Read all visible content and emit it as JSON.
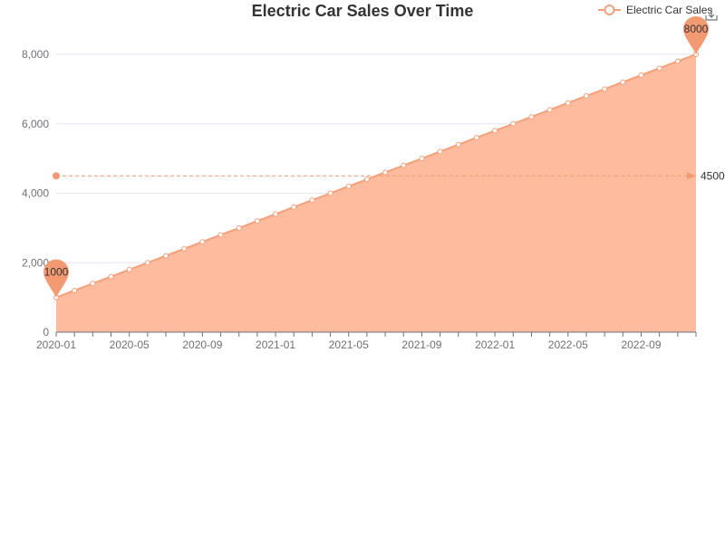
{
  "chart_data": {
    "type": "area",
    "title": "Electric Car Sales Over Time",
    "xlabel": "",
    "ylabel": "",
    "x": [
      "2020-01",
      "2020-02",
      "2020-03",
      "2020-04",
      "2020-05",
      "2020-06",
      "2020-07",
      "2020-08",
      "2020-09",
      "2020-10",
      "2020-11",
      "2020-12",
      "2021-01",
      "2021-02",
      "2021-03",
      "2021-04",
      "2021-05",
      "2021-06",
      "2021-07",
      "2021-08",
      "2021-09",
      "2021-10",
      "2021-11",
      "2021-12",
      "2022-01",
      "2022-02",
      "2022-03",
      "2022-04",
      "2022-05",
      "2022-06",
      "2022-07",
      "2022-08",
      "2022-09",
      "2022-10",
      "2022-11",
      "2022-12"
    ],
    "x_tick_labels": [
      "2020-01",
      "2020-05",
      "2020-09",
      "2021-01",
      "2021-05",
      "2021-09",
      "2022-01",
      "2022-05",
      "2022-09"
    ],
    "y_tick_labels": [
      "0",
      "2,000",
      "4,000",
      "6,000",
      "8,000"
    ],
    "ylim": [
      0,
      8000
    ],
    "series": [
      {
        "name": "Electric Car Sales",
        "values": [
          1000,
          1200,
          1400,
          1600,
          1800,
          2000,
          2200,
          2400,
          2600,
          2800,
          3000,
          3200,
          3400,
          3600,
          3800,
          4000,
          4200,
          4400,
          4600,
          4800,
          5000,
          5200,
          5400,
          5600,
          5800,
          6000,
          6200,
          6400,
          6600,
          6800,
          7000,
          7200,
          7400,
          7600,
          7800,
          8000
        ]
      }
    ],
    "mark_points": [
      {
        "label": "1000",
        "value": 1000,
        "x": "2020-01"
      },
      {
        "label": "8000",
        "value": 8000,
        "x": "2022-12"
      }
    ],
    "mark_line": {
      "label": "4500",
      "value": 4500
    },
    "grid": true,
    "legend": "top-right",
    "colors": {
      "line": "#f4a07a",
      "area": "#ffbb9e",
      "pin": "#f49a72",
      "grid": "#e0e6f1",
      "axis": "#6e7079"
    }
  },
  "legend": {
    "label": "Electric Car Sales"
  },
  "toolbox": {
    "icon": "download-icon"
  }
}
